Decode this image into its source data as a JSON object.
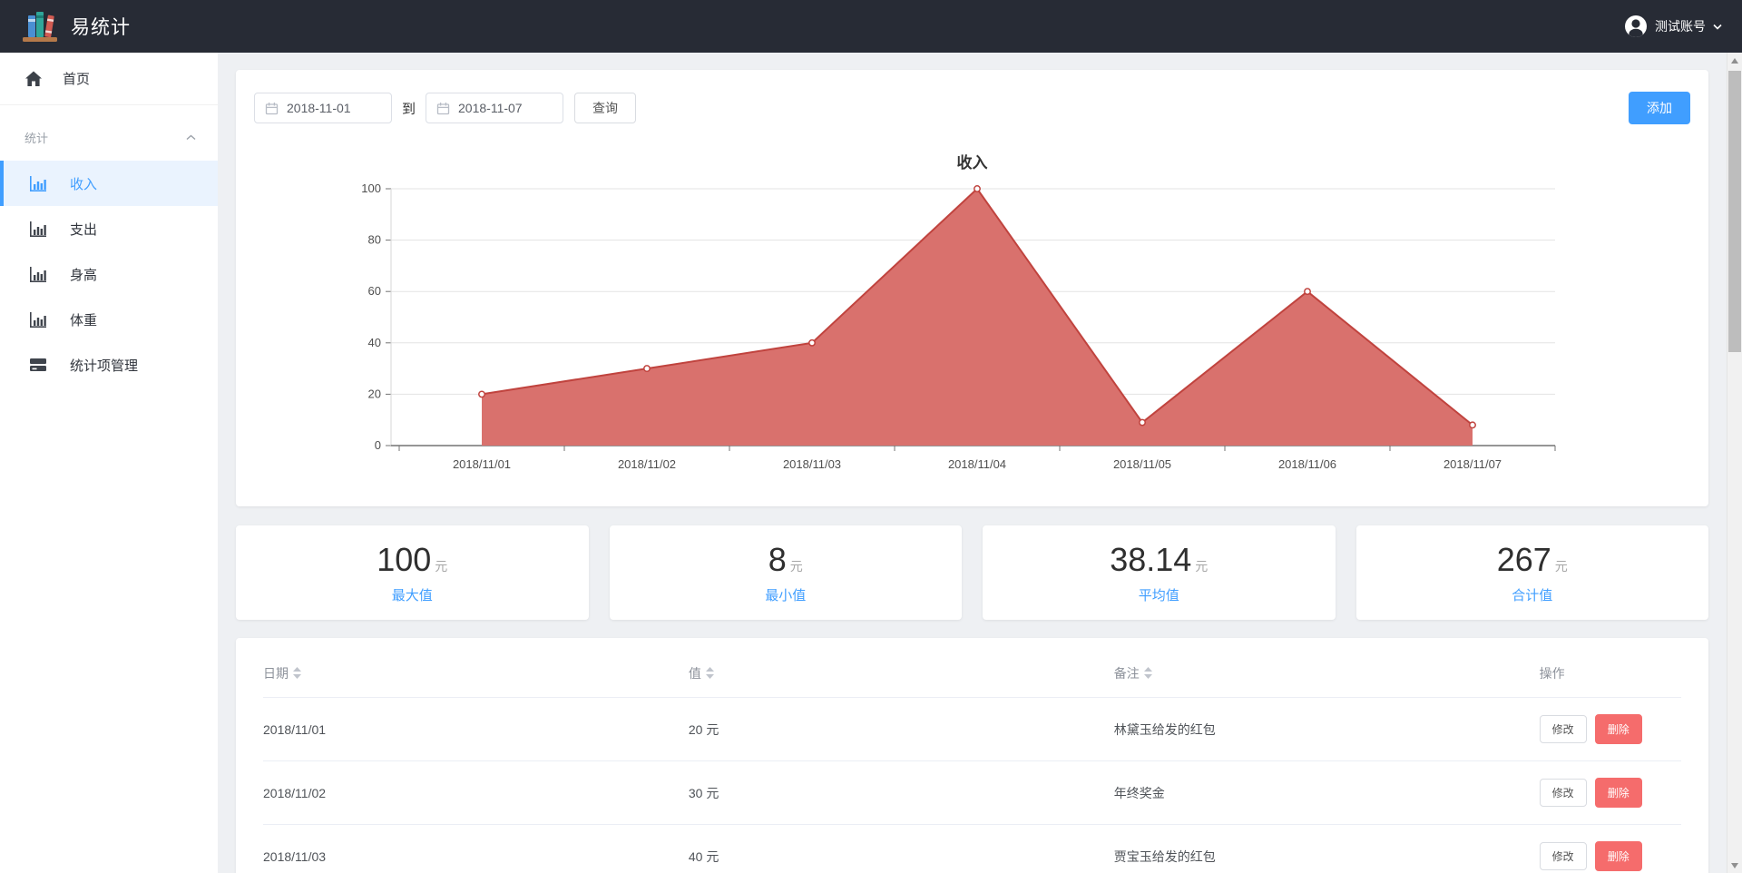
{
  "header": {
    "app_title": "易统计",
    "account": "测试账号"
  },
  "sidebar": {
    "home_label": "首页",
    "section_label": "统计",
    "items": [
      {
        "label": "收入",
        "active": true
      },
      {
        "label": "支出",
        "active": false
      },
      {
        "label": "身高",
        "active": false
      },
      {
        "label": "体重",
        "active": false
      },
      {
        "label": "统计项管理",
        "active": false
      }
    ]
  },
  "toolbar": {
    "date_from": "2018-11-01",
    "to_label": "到",
    "date_to": "2018-11-07",
    "query_label": "查询",
    "add_label": "添加"
  },
  "chart_data": {
    "type": "area",
    "title": "收入",
    "categories": [
      "2018/11/01",
      "2018/11/02",
      "2018/11/03",
      "2018/11/04",
      "2018/11/05",
      "2018/11/06",
      "2018/11/07"
    ],
    "values": [
      20,
      30,
      40,
      100,
      9,
      60,
      8
    ],
    "ylim": [
      0,
      100
    ],
    "ytick_step": 20,
    "grid": true,
    "legend": "none",
    "fill_color": "#d9716d",
    "line_color": "#c0433e",
    "grid_color": "#e3e3e3",
    "axis_color": "#737373",
    "tick_label_color": "#4f4f4f"
  },
  "stats": {
    "cards": [
      {
        "value": "100",
        "unit": "元",
        "label": "最大值"
      },
      {
        "value": "8",
        "unit": "元",
        "label": "最小值"
      },
      {
        "value": "38.14",
        "unit": "元",
        "label": "平均值"
      },
      {
        "value": "267",
        "unit": "元",
        "label": "合计值"
      }
    ]
  },
  "table": {
    "columns": [
      "日期",
      "值",
      "备注",
      "操作"
    ],
    "rows": [
      {
        "date": "2018/11/01",
        "value": "20 元",
        "note": "林黛玉给发的红包"
      },
      {
        "date": "2018/11/02",
        "value": "30 元",
        "note": "年终奖金"
      },
      {
        "date": "2018/11/03",
        "value": "40 元",
        "note": "贾宝玉给发的红包"
      }
    ],
    "actions": {
      "edit": "修改",
      "delete": "删除"
    }
  },
  "colors": {
    "accent": "#409eff",
    "danger": "#f56c6c",
    "header_bg": "#272b35",
    "sidebar_active_bg": "#eaf3fe",
    "main_bg": "#eef0f3"
  }
}
